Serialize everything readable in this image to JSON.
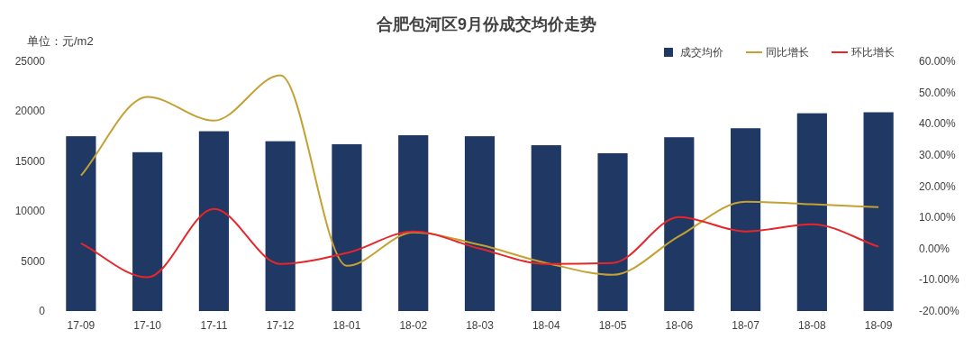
{
  "chart_data": {
    "type": "bar",
    "title": "合肥包河区9月份成交均价走势",
    "annotations": [
      "单位：元/m2"
    ],
    "categories": [
      "17-09",
      "17-10",
      "17-11",
      "17-12",
      "18-01",
      "18-02",
      "18-03",
      "18-04",
      "18-05",
      "18-06",
      "18-07",
      "18-08",
      "18-09"
    ],
    "series": [
      {
        "name": "成交均价",
        "color": "#1f3864",
        "values": [
          17500,
          15900,
          18000,
          17000,
          16700,
          17600,
          17500,
          16600,
          15800,
          17400,
          18300,
          19800,
          19900
        ]
      },
      {
        "name": "同比增长",
        "type": "line",
        "axis": "y2",
        "color": "#c4a132",
        "values": [
          23.4,
          48.6,
          41,
          55.5,
          -5.5,
          5.2,
          1.2,
          -4.6,
          -8.4,
          4,
          15,
          14.2,
          13.3
        ]
      },
      {
        "name": "环比增长",
        "type": "line",
        "axis": "y2",
        "color": "#e8262a",
        "values": [
          1.7,
          -9.2,
          12.7,
          -4.9,
          -1.4,
          5.5,
          0,
          -4.9,
          -4.6,
          10.1,
          5.5,
          7.8,
          0.6
        ]
      }
    ],
    "ylim": [
      0,
      25000
    ],
    "yticks": [
      0,
      5000,
      10000,
      15000,
      20000,
      25000
    ],
    "y2lim": [
      -20,
      60
    ],
    "y2ticks": [
      {
        "value": -20,
        "label": "-20.00%"
      },
      {
        "value": -10,
        "label": "-10.00%"
      },
      {
        "value": 0,
        "label": "0.00%"
      },
      {
        "value": 10,
        "label": "10.00%"
      },
      {
        "value": 20,
        "label": "20.00%"
      },
      {
        "value": 30,
        "label": "30.00%"
      },
      {
        "value": 40,
        "label": "40.00%"
      },
      {
        "value": 50,
        "label": "50.00%"
      },
      {
        "value": 60,
        "label": "60.00%"
      }
    ],
    "legend": "top right"
  }
}
